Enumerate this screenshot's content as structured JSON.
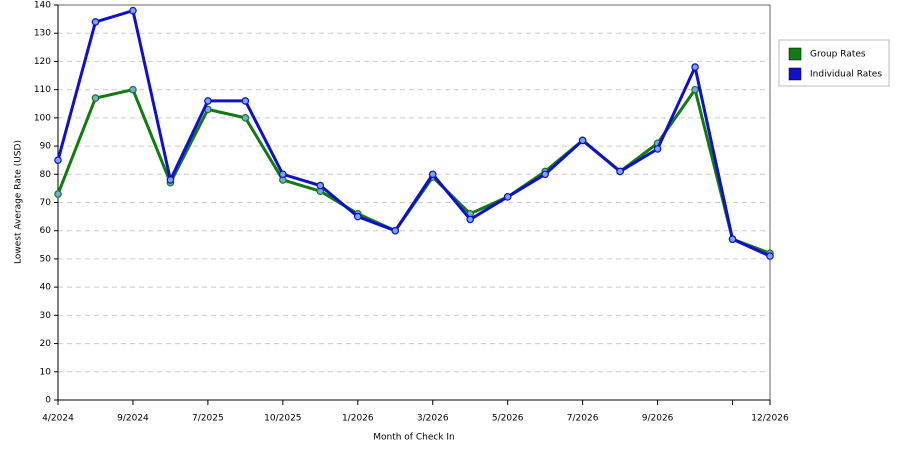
{
  "chart_data": {
    "type": "line",
    "xlabel": "Month of Check In",
    "ylabel": "Lowest Average Rate (USD)",
    "categories": [
      "4/2024",
      null,
      "9/2024",
      null,
      "7/2025",
      null,
      "10/2025",
      null,
      "1/2026",
      null,
      "3/2026",
      null,
      "5/2026",
      null,
      "7/2026",
      null,
      "9/2026",
      null,
      null,
      "12/2026"
    ],
    "series": [
      {
        "name": "Group Rates",
        "color": "#127a12",
        "values": [
          73,
          107,
          110,
          77,
          103,
          100,
          78,
          74,
          66,
          60,
          79,
          66,
          72,
          81,
          92,
          81,
          91,
          110,
          57,
          52
        ]
      },
      {
        "name": "Individual Rates",
        "color": "#1010c8",
        "values": [
          85,
          134,
          138,
          78,
          106,
          106,
          80,
          76,
          65,
          60,
          80,
          64,
          72,
          80,
          92,
          81,
          89,
          118,
          57,
          51
        ]
      }
    ],
    "ylim": [
      0,
      140
    ],
    "yticks": [
      0,
      10,
      20,
      30,
      40,
      50,
      60,
      70,
      80,
      90,
      100,
      110,
      120,
      130,
      140
    ],
    "grid": true,
    "legend": "right"
  }
}
